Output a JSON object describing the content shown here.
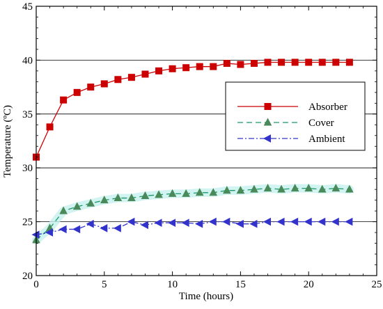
{
  "chart_data": {
    "type": "line",
    "xlabel": "Time (hours)",
    "ylabel": "Temperature (ºC)",
    "xlim": [
      0,
      25
    ],
    "ylim": [
      20,
      45
    ],
    "xticks": [
      "0",
      "5",
      "10",
      "15",
      "20",
      "25"
    ],
    "yticks": [
      "20",
      "25",
      "30",
      "35",
      "40",
      "45"
    ],
    "grid": "horizontal",
    "legend_position": "right",
    "x": [
      0,
      1,
      2,
      3,
      4,
      5,
      6,
      7,
      8,
      9,
      10,
      11,
      12,
      13,
      14,
      15,
      16,
      17,
      18,
      19,
      20,
      21,
      22,
      23
    ],
    "series": [
      {
        "name": "Absorber",
        "color": "#cc0000",
        "line_style": "solid",
        "marker": "square",
        "values": [
          31.0,
          33.8,
          36.3,
          37.0,
          37.5,
          37.8,
          38.2,
          38.4,
          38.7,
          39.0,
          39.2,
          39.3,
          39.4,
          39.4,
          39.7,
          39.6,
          39.7,
          39.8,
          39.8,
          39.8,
          39.8,
          39.8,
          39.8,
          39.8
        ]
      },
      {
        "name": "Cover",
        "color": "#1a9966",
        "marker_color": "#4a8a5a",
        "line_style": "dashed",
        "marker": "triangle-up",
        "values": [
          23.3,
          24.4,
          26.0,
          26.4,
          26.7,
          27.0,
          27.2,
          27.2,
          27.4,
          27.5,
          27.6,
          27.6,
          27.7,
          27.7,
          27.9,
          27.9,
          28.0,
          28.1,
          28.0,
          28.1,
          28.1,
          28.0,
          28.1,
          28.0
        ]
      },
      {
        "name": "Ambient",
        "color": "#3333cc",
        "line_style": "dash-dot",
        "marker": "triangle-left",
        "values": [
          23.8,
          24.0,
          24.3,
          24.3,
          24.8,
          24.4,
          24.4,
          25.0,
          24.7,
          24.9,
          24.9,
          24.9,
          24.8,
          25.0,
          25.0,
          24.8,
          24.8,
          25.0,
          25.0,
          25.0,
          25.0,
          25.0,
          25.0,
          25.0
        ]
      }
    ]
  }
}
